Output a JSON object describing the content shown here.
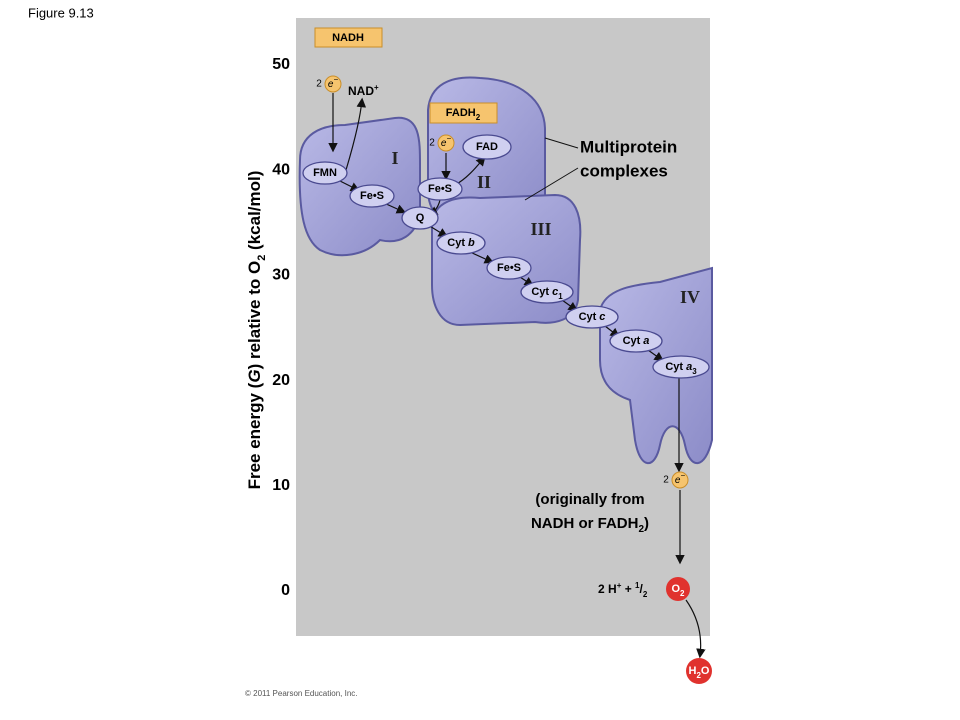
{
  "figure_label": "Figure 9.13",
  "y_axis": {
    "label_parts": [
      "Free energy (",
      "G",
      ") relative to O",
      "2",
      " (kcal/mol)"
    ],
    "ticks": [
      50,
      40,
      30,
      20,
      10,
      0
    ]
  },
  "inputs": {
    "nadh": "NADH",
    "nad": {
      "text": "NAD",
      "sup": "+"
    },
    "fadh2": {
      "text": "FADH",
      "sub": "2"
    },
    "fad": "FAD"
  },
  "electrons": [
    {
      "count": "2",
      "symbol": "e",
      "charge": "−"
    },
    {
      "count": "2",
      "symbol": "e",
      "charge": "−"
    },
    {
      "count": "2",
      "symbol": "e",
      "charge": "−"
    }
  ],
  "complexes": [
    "I",
    "II",
    "III",
    "IV"
  ],
  "carriers": [
    {
      "label": "FMN"
    },
    {
      "label": "Fe•S"
    },
    {
      "label": "Q"
    },
    {
      "label": "Fe•S"
    },
    {
      "label": "Cyt",
      "italic": "b"
    },
    {
      "label": "Fe•S"
    },
    {
      "label": "Cyt",
      "italic": "c",
      "sub": "1"
    },
    {
      "label": "Cyt",
      "italic": "c"
    },
    {
      "label": "Cyt",
      "italic": "a"
    },
    {
      "label": "Cyt",
      "italic": "a",
      "sub": "3"
    }
  ],
  "callout": [
    "Multiprotein",
    "complexes"
  ],
  "note": [
    "(originally from",
    "NADH or FADH",
    "2",
    ")"
  ],
  "reaction": {
    "left": "2 H",
    "sup1": "+",
    "plus": " + ",
    "num": "1",
    "slash": "/",
    "den": "2",
    "o2": "O",
    "o2_sub": "2"
  },
  "product": {
    "text": "H",
    "sub": "2",
    "rest": "O"
  },
  "copyright": "© 2011 Pearson Education, Inc."
}
